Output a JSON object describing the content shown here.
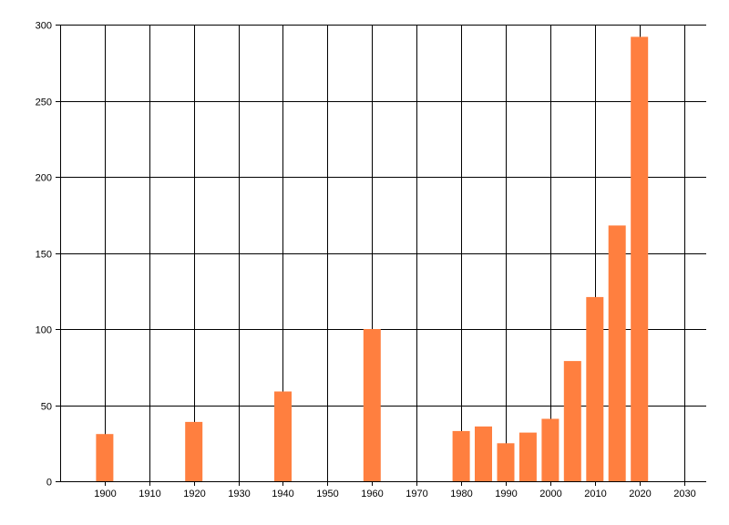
{
  "chart_data": {
    "type": "bar",
    "x": [
      1900,
      1920,
      1940,
      1960,
      1980,
      1985,
      1990,
      1995,
      2000,
      2005,
      2010,
      2015,
      2020
    ],
    "values": [
      31,
      39,
      59,
      100,
      33,
      36,
      25,
      32,
      41,
      79,
      121,
      168,
      292
    ],
    "xlim": [
      1890,
      2035
    ],
    "ylim": [
      0,
      300
    ],
    "x_ticks": [
      1900,
      1910,
      1920,
      1930,
      1940,
      1950,
      1960,
      1970,
      1980,
      1990,
      2000,
      2010,
      2020,
      2030
    ],
    "y_ticks": [
      0,
      50,
      100,
      150,
      200,
      250,
      300
    ],
    "grid": true,
    "bar_color": "#ff7f3f",
    "grid_color": "#000000",
    "title": "",
    "xlabel": "",
    "ylabel": ""
  }
}
